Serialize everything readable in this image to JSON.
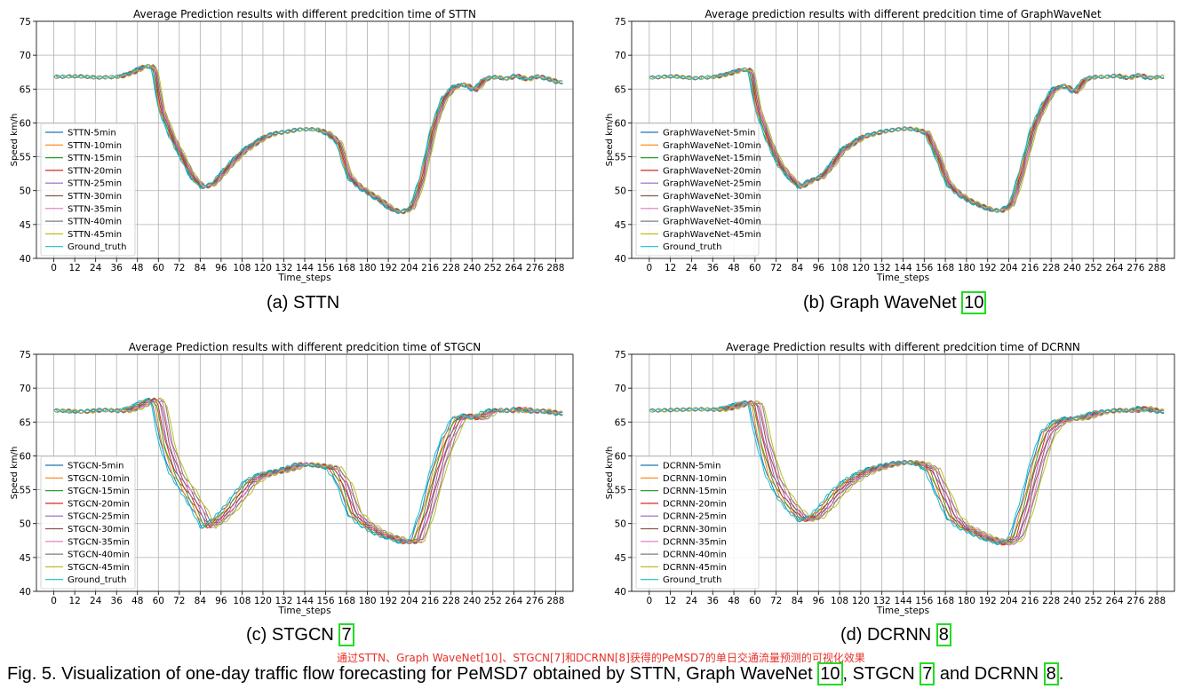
{
  "figure": {
    "note": "通过STTN、Graph WaveNet[10]、STGCN[7]和DCRNN[8]获得的PeMSD7的单日交通流量预测的可视化效果",
    "caption_parts": [
      "Fig. 5. Visualization of one-day traffic flow forecasting for PeMSD7 obtained by STTN, Graph WaveNet ",
      "10",
      ", STGCN ",
      "7",
      " and DCRNN ",
      "8",
      "."
    ]
  },
  "captions": [
    {
      "label": "(a) STTN",
      "ref": ""
    },
    {
      "label": "(b) Graph WaveNet ",
      "ref": "10"
    },
    {
      "label": "(c) STGCN ",
      "ref": "7"
    },
    {
      "label": "(d) DCRNN ",
      "ref": "8"
    }
  ],
  "colors": [
    "#1f77b4",
    "#ff7f0e",
    "#2ca02c",
    "#d62728",
    "#9467bd",
    "#8c564b",
    "#e377c2",
    "#7f7f7f",
    "#bcbd22",
    "#17becf"
  ],
  "chart_data": [
    {
      "type": "line",
      "title": "Average Prediction results with different predcition time of STTN",
      "xlabel": "Time_steps",
      "ylabel": "Speed km/h",
      "xlim": [
        -10,
        298
      ],
      "ylim": [
        40,
        75
      ],
      "xticks": [
        0,
        12,
        24,
        36,
        48,
        60,
        72,
        84,
        96,
        108,
        120,
        132,
        144,
        156,
        168,
        180,
        192,
        204,
        216,
        228,
        240,
        252,
        264,
        276,
        288
      ],
      "yticks": [
        40,
        45,
        50,
        55,
        60,
        65,
        70,
        75
      ],
      "grid": true,
      "legend_position": "lower-left",
      "series_names": [
        "STTN-5min",
        "STTN-10min",
        "STTN-15min",
        "STTN-20min",
        "STTN-25min",
        "STTN-30min",
        "STTN-35min",
        "STTN-40min",
        "STTN-45min",
        "Ground_truth"
      ],
      "lag_step": 0.4,
      "ground_truth": {
        "x": [
          0,
          12,
          24,
          36,
          44,
          50,
          54,
          56,
          60,
          66,
          72,
          78,
          84,
          90,
          96,
          102,
          108,
          114,
          120,
          126,
          132,
          138,
          144,
          150,
          156,
          162,
          168,
          174,
          180,
          186,
          192,
          198,
          204,
          210,
          216,
          222,
          228,
          234,
          240,
          246,
          252,
          258,
          264,
          270,
          276,
          282,
          288
        ],
        "y": [
          66.8,
          66.9,
          66.7,
          66.8,
          67.5,
          68.3,
          68.4,
          67.8,
          62.0,
          58.0,
          55.0,
          52.0,
          50.5,
          51.0,
          52.8,
          54.5,
          56.0,
          57.0,
          58.0,
          58.5,
          58.7,
          59.0,
          59.1,
          59.0,
          58.4,
          57.0,
          52.0,
          50.5,
          49.5,
          48.5,
          47.3,
          46.8,
          47.5,
          52.0,
          59.0,
          63.5,
          65.3,
          65.7,
          64.8,
          66.5,
          66.8,
          66.5,
          67.0,
          66.4,
          66.9,
          66.5,
          66.0
        ]
      }
    },
    {
      "type": "line",
      "title": "Average prediction results with different predcition time of GraphWaveNet",
      "xlabel": "Time_steps",
      "ylabel": "Speed km/h",
      "xlim": [
        -10,
        298
      ],
      "ylim": [
        40,
        75
      ],
      "xticks": [
        0,
        12,
        24,
        36,
        48,
        60,
        72,
        84,
        96,
        108,
        120,
        132,
        144,
        156,
        168,
        180,
        192,
        204,
        216,
        228,
        240,
        252,
        264,
        276,
        288
      ],
      "yticks": [
        40,
        45,
        50,
        55,
        60,
        65,
        70,
        75
      ],
      "grid": true,
      "legend_position": "lower-left",
      "series_names": [
        "GraphWaveNet-5min",
        "GraphWaveNet-10min",
        "GraphWaveNet-15min",
        "GraphWaveNet-20min",
        "GraphWaveNet-25min",
        "GraphWaveNet-30min",
        "GraphWaveNet-35min",
        "GraphWaveNet-40min",
        "GraphWaveNet-45min",
        "Ground_truth"
      ],
      "lag_step": 0.4,
      "ground_truth": {
        "x": [
          0,
          12,
          24,
          36,
          44,
          50,
          54,
          56,
          60,
          66,
          72,
          78,
          84,
          90,
          96,
          102,
          108,
          114,
          120,
          126,
          132,
          138,
          144,
          150,
          156,
          162,
          168,
          174,
          180,
          186,
          192,
          198,
          204,
          210,
          216,
          222,
          228,
          234,
          240,
          246,
          252,
          258,
          264,
          270,
          276,
          282,
          288
        ],
        "y": [
          66.7,
          66.9,
          66.6,
          66.8,
          67.3,
          67.8,
          67.9,
          67.5,
          62.0,
          57.5,
          54.0,
          52.0,
          50.5,
          51.5,
          52.0,
          53.8,
          56.0,
          57.0,
          58.0,
          58.4,
          58.8,
          59.0,
          59.2,
          59.0,
          58.5,
          55.0,
          51.0,
          49.5,
          48.5,
          47.8,
          47.2,
          47.0,
          48.0,
          53.0,
          59.0,
          62.5,
          65.0,
          65.5,
          64.5,
          66.5,
          66.8,
          66.8,
          67.0,
          66.6,
          67.1,
          66.6,
          66.8
        ]
      }
    },
    {
      "type": "line",
      "title": "Average Prediction results with different predcition time of STGCN",
      "xlabel": "Time_steps",
      "ylabel": "Speed km/h",
      "xlim": [
        -10,
        298
      ],
      "ylim": [
        40,
        75
      ],
      "xticks": [
        0,
        12,
        24,
        36,
        48,
        60,
        72,
        84,
        96,
        108,
        120,
        132,
        144,
        156,
        168,
        180,
        192,
        204,
        216,
        228,
        240,
        252,
        264,
        276,
        288
      ],
      "yticks": [
        40,
        45,
        50,
        55,
        60,
        65,
        70,
        75
      ],
      "grid": true,
      "legend_position": "lower-left",
      "series_names": [
        "STGCN-5min",
        "STGCN-10min",
        "STGCN-15min",
        "STGCN-20min",
        "STGCN-25min",
        "STGCN-30min",
        "STGCN-35min",
        "STGCN-40min",
        "STGCN-45min",
        "Ground_truth"
      ],
      "lag_step": 1.0,
      "ground_truth": {
        "x": [
          0,
          12,
          24,
          36,
          44,
          50,
          54,
          56,
          60,
          66,
          72,
          78,
          84,
          90,
          96,
          102,
          108,
          114,
          120,
          126,
          132,
          138,
          144,
          150,
          156,
          162,
          168,
          174,
          180,
          186,
          192,
          198,
          204,
          210,
          216,
          222,
          228,
          234,
          240,
          246,
          252,
          258,
          264,
          270,
          276,
          282,
          288
        ],
        "y": [
          66.7,
          66.5,
          66.8,
          66.6,
          67.3,
          68.1,
          68.3,
          67.5,
          62.0,
          57.5,
          55.0,
          52.5,
          49.5,
          50.5,
          52.0,
          54.0,
          56.0,
          57.0,
          57.5,
          57.8,
          58.2,
          58.8,
          58.7,
          58.5,
          58.2,
          56.0,
          51.5,
          50.0,
          49.0,
          48.2,
          47.8,
          47.2,
          47.5,
          52.0,
          58.0,
          62.5,
          65.5,
          66.0,
          65.5,
          66.6,
          66.8,
          66.6,
          67.0,
          66.5,
          66.7,
          66.4,
          66.2
        ]
      }
    },
    {
      "type": "line",
      "title": "Average Prediction results with different predcition time of DCRNN",
      "xlabel": "Time_steps",
      "ylabel": "Speed km/h",
      "xlim": [
        -10,
        298
      ],
      "ylim": [
        40,
        75
      ],
      "xticks": [
        0,
        12,
        24,
        36,
        48,
        60,
        72,
        84,
        96,
        108,
        120,
        132,
        144,
        156,
        168,
        180,
        192,
        204,
        216,
        228,
        240,
        252,
        264,
        276,
        288
      ],
      "yticks": [
        40,
        45,
        50,
        55,
        60,
        65,
        70,
        75
      ],
      "grid": true,
      "legend_position": "lower-left",
      "series_names": [
        "DCRNN-5min",
        "DCRNN-10min",
        "DCRNN-15min",
        "DCRNN-20min",
        "DCRNN-25min",
        "DCRNN-30min",
        "DCRNN-35min",
        "DCRNN-40min",
        "DCRNN-45min",
        "Ground_truth"
      ],
      "lag_step": 1.0,
      "ground_truth": {
        "x": [
          0,
          12,
          24,
          36,
          44,
          50,
          54,
          56,
          60,
          66,
          72,
          78,
          84,
          90,
          96,
          102,
          108,
          114,
          120,
          126,
          132,
          138,
          144,
          150,
          156,
          162,
          168,
          174,
          180,
          186,
          192,
          198,
          204,
          210,
          216,
          222,
          228,
          234,
          240,
          246,
          252,
          258,
          264,
          270,
          276,
          282,
          288
        ],
        "y": [
          66.7,
          66.8,
          66.9,
          66.8,
          67.3,
          67.8,
          67.9,
          67.5,
          62.5,
          57.0,
          54.0,
          52.0,
          50.5,
          51.0,
          52.5,
          54.5,
          56.0,
          57.0,
          57.8,
          58.3,
          58.7,
          59.0,
          59.1,
          58.8,
          58.0,
          54.5,
          51.0,
          49.5,
          48.8,
          48.0,
          47.5,
          47.0,
          48.0,
          53.0,
          59.0,
          63.5,
          65.0,
          65.5,
          65.5,
          66.0,
          66.5,
          66.6,
          66.8,
          66.6,
          67.1,
          66.7,
          66.5
        ]
      }
    }
  ]
}
